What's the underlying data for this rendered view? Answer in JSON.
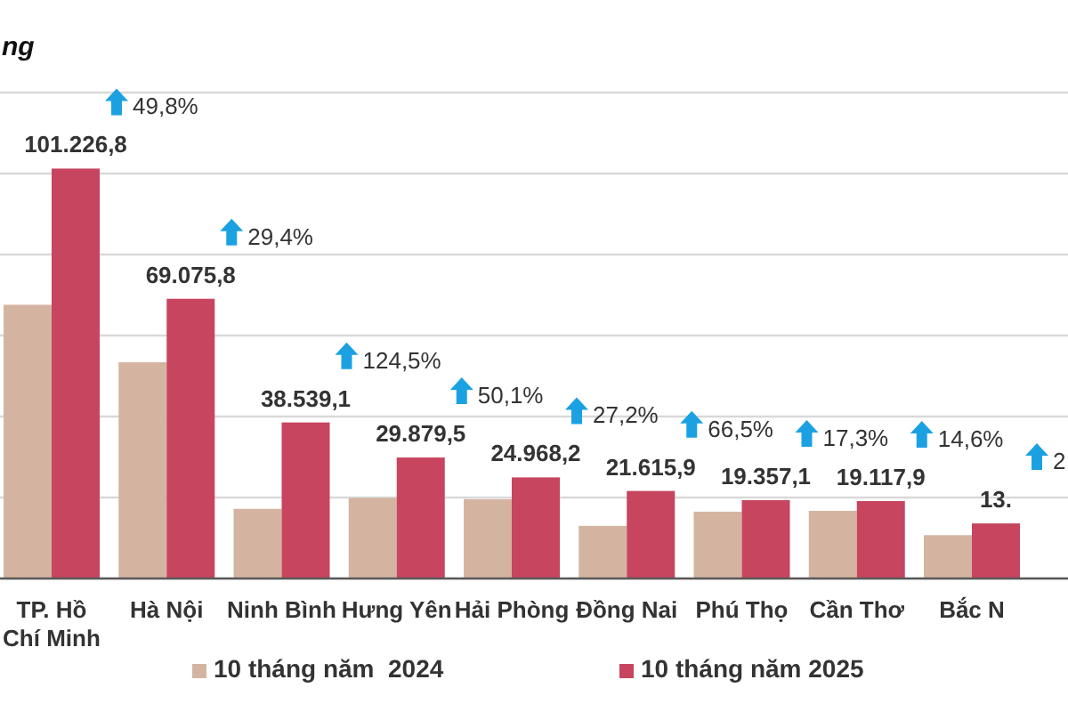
{
  "chart_data": {
    "type": "bar",
    "ylabel": "ng",
    "categories": [
      "TP. Hồ Chí Minh",
      "Hà Nội",
      "Ninh Bình",
      "Hưng Yên",
      "Hải Phòng",
      "Đồng Nai",
      "Phú Thọ",
      "Cần Thơ",
      "Bắc N"
    ],
    "series": [
      {
        "name": "10 tháng năm  2024",
        "color": "#d4b4a0",
        "values": [
          67600,
          53400,
          17200,
          19900,
          19600,
          13000,
          16500,
          16700,
          10700
        ]
      },
      {
        "name": "10 tháng năm 2025",
        "color": "#c7455e",
        "values": [
          101226.8,
          69075.8,
          38539.1,
          29879.5,
          24968.2,
          21615.9,
          19357.1,
          19117.9,
          13600
        ],
        "value_labels": [
          "101.226,8",
          "69.075,8",
          "38.539,1",
          "29.879,5",
          "24.968,2",
          "21.615,9",
          "19.357,1",
          "19.117,9",
          null
        ]
      }
    ],
    "ylim": [
      0,
      120000
    ],
    "yticks": [
      {
        "value": 0,
        "label": null
      },
      {
        "value": 20000,
        "label": null
      },
      {
        "value": 40000,
        "label": null
      },
      {
        "value": 60000,
        "label": null
      },
      {
        "value": 80000,
        "label": null
      },
      {
        "value": 100000,
        "label": null
      },
      {
        "value": 120000,
        "label": null
      }
    ],
    "grid": "y",
    "legend": "bottom",
    "tick_labels": "x",
    "annotations": [
      "49,8%",
      "29,4%",
      "124,5%",
      "50,1%",
      "27,2%",
      "66,5%",
      "17,3%",
      "14,6%",
      "2",
      {
        "text": "13.",
        "x": "Bắc N",
        "y": 13600
      }
    ]
  }
}
